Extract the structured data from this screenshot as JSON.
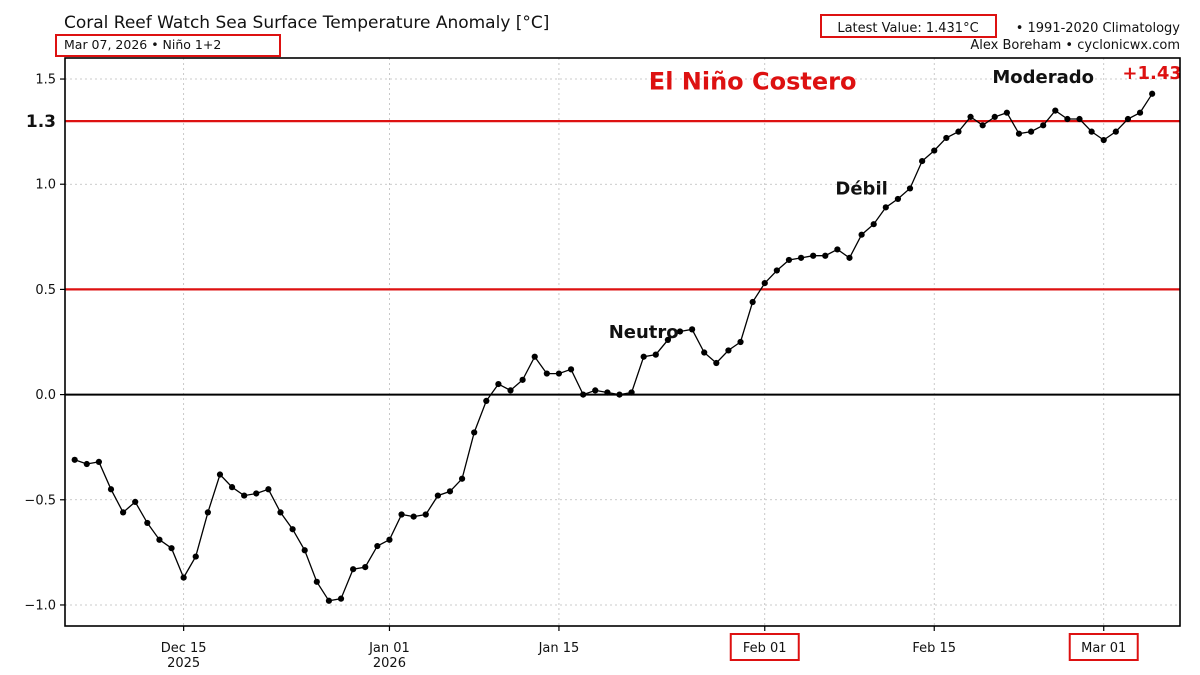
{
  "header": {
    "title": "Coral Reef Watch Sea Surface Temperature Anomaly [°C]",
    "subtitle": "Mar 07, 2026 • Niño 1+2",
    "latest_value": "Latest Value: 1.431°C",
    "climatology": "• 1991-2020 Climatology",
    "credit": "Alex Boreham • cyclonicwx.com"
  },
  "colors": {
    "threshold": "#dd1111",
    "series": "#000000",
    "highlight_box": "#dd1111",
    "grid": "#bbbbbb"
  },
  "chart_data": {
    "type": "line",
    "start_date": "2025-12-06",
    "x_step_days": 1,
    "ylim": [
      -1.1,
      1.6
    ],
    "yticks": [
      -1.0,
      -0.5,
      0.0,
      0.5,
      1.0,
      1.5
    ],
    "ytick_labels": [
      "−1.0",
      "−0.5",
      "0.0",
      "0.5",
      "1.0",
      "1.5"
    ],
    "xticks": [
      {
        "label": "Dec 15",
        "sublabel": "2025",
        "date": "2025-12-15",
        "boxed": false
      },
      {
        "label": "Jan 01",
        "sublabel": "2026",
        "date": "2026-01-01",
        "boxed": false
      },
      {
        "label": "Jan 15",
        "sublabel": "",
        "date": "2026-01-15",
        "boxed": false
      },
      {
        "label": "Feb 01",
        "sublabel": "",
        "date": "2026-02-01",
        "boxed": true
      },
      {
        "label": "Feb 15",
        "sublabel": "",
        "date": "2026-02-15",
        "boxed": false
      },
      {
        "label": "Mar 01",
        "sublabel": "",
        "date": "2026-03-01",
        "boxed": true
      }
    ],
    "grid": true,
    "thresholds": [
      {
        "value": 0.5,
        "color": "#dd1111"
      },
      {
        "value": 1.3,
        "color": "#dd1111",
        "label": "1.3"
      }
    ],
    "zero_line": 0.0,
    "annotations": [
      {
        "text": "El Niño Costero",
        "color": "#dd1111",
        "date": "2026-01-31",
        "y": 1.45
      },
      {
        "text": "Moderado",
        "color": "#111111",
        "date": "2026-02-24",
        "y": 1.48
      },
      {
        "text": "Débil",
        "color": "#111111",
        "date": "2026-02-09",
        "y": 0.95
      },
      {
        "text": "Neutro",
        "color": "#111111",
        "date": "2026-01-22",
        "y": 0.27
      },
      {
        "text": "+1.43",
        "color": "#dd1111",
        "date": "2026-03-05",
        "y": 1.5
      }
    ],
    "series": [
      {
        "values": [
          -0.31,
          -0.33,
          -0.32,
          -0.45,
          -0.56,
          -0.51,
          -0.61,
          -0.69,
          -0.73,
          -0.87,
          -0.77,
          -0.56,
          -0.38,
          -0.44,
          -0.48,
          -0.47,
          -0.45,
          -0.56,
          -0.64,
          -0.74,
          -0.89,
          -0.98,
          -0.97,
          -0.83,
          -0.82,
          -0.72,
          -0.69,
          -0.57,
          -0.58,
          -0.57,
          -0.48,
          -0.46,
          -0.4,
          -0.18,
          -0.03,
          0.05,
          0.02,
          0.07,
          0.18,
          0.1,
          0.1,
          0.12,
          0.0,
          0.02,
          0.01,
          0.0,
          0.01,
          0.18,
          0.19,
          0.26,
          0.3,
          0.31,
          0.2,
          0.15,
          0.21,
          0.25,
          0.44,
          0.53,
          0.59,
          0.64,
          0.65,
          0.66,
          0.66,
          0.69,
          0.65,
          0.76,
          0.81,
          0.89,
          0.93,
          0.98,
          1.11,
          1.16,
          1.22,
          1.25,
          1.32,
          1.28,
          1.32,
          1.34,
          1.24,
          1.25,
          1.28,
          1.35,
          1.31,
          1.31,
          1.25,
          1.21,
          1.25,
          1.31,
          1.34,
          1.43
        ]
      }
    ]
  }
}
